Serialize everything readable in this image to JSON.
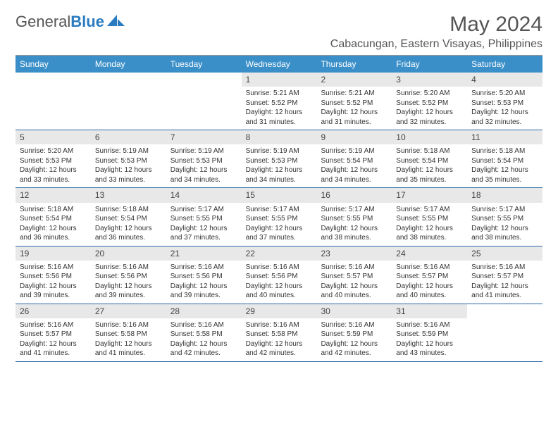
{
  "brand": {
    "part1": "General",
    "part2": "Blue"
  },
  "title": "May 2024",
  "location": "Cabacungan, Eastern Visayas, Philippines",
  "colors": {
    "header_bg": "#3b8fc9",
    "header_text": "#ffffff",
    "daynum_bg": "#e8e8e8",
    "border": "#2a6aa6",
    "text": "#333333",
    "title_text": "#555555"
  },
  "weekdays": [
    "Sunday",
    "Monday",
    "Tuesday",
    "Wednesday",
    "Thursday",
    "Friday",
    "Saturday"
  ],
  "weeks": [
    [
      {
        "n": "",
        "sunrise": "",
        "sunset": "",
        "dl": ""
      },
      {
        "n": "",
        "sunrise": "",
        "sunset": "",
        "dl": ""
      },
      {
        "n": "",
        "sunrise": "",
        "sunset": "",
        "dl": ""
      },
      {
        "n": "1",
        "sunrise": "Sunrise: 5:21 AM",
        "sunset": "Sunset: 5:52 PM",
        "dl": "Daylight: 12 hours and 31 minutes."
      },
      {
        "n": "2",
        "sunrise": "Sunrise: 5:21 AM",
        "sunset": "Sunset: 5:52 PM",
        "dl": "Daylight: 12 hours and 31 minutes."
      },
      {
        "n": "3",
        "sunrise": "Sunrise: 5:20 AM",
        "sunset": "Sunset: 5:52 PM",
        "dl": "Daylight: 12 hours and 32 minutes."
      },
      {
        "n": "4",
        "sunrise": "Sunrise: 5:20 AM",
        "sunset": "Sunset: 5:53 PM",
        "dl": "Daylight: 12 hours and 32 minutes."
      }
    ],
    [
      {
        "n": "5",
        "sunrise": "Sunrise: 5:20 AM",
        "sunset": "Sunset: 5:53 PM",
        "dl": "Daylight: 12 hours and 33 minutes."
      },
      {
        "n": "6",
        "sunrise": "Sunrise: 5:19 AM",
        "sunset": "Sunset: 5:53 PM",
        "dl": "Daylight: 12 hours and 33 minutes."
      },
      {
        "n": "7",
        "sunrise": "Sunrise: 5:19 AM",
        "sunset": "Sunset: 5:53 PM",
        "dl": "Daylight: 12 hours and 34 minutes."
      },
      {
        "n": "8",
        "sunrise": "Sunrise: 5:19 AM",
        "sunset": "Sunset: 5:53 PM",
        "dl": "Daylight: 12 hours and 34 minutes."
      },
      {
        "n": "9",
        "sunrise": "Sunrise: 5:19 AM",
        "sunset": "Sunset: 5:54 PM",
        "dl": "Daylight: 12 hours and 34 minutes."
      },
      {
        "n": "10",
        "sunrise": "Sunrise: 5:18 AM",
        "sunset": "Sunset: 5:54 PM",
        "dl": "Daylight: 12 hours and 35 minutes."
      },
      {
        "n": "11",
        "sunrise": "Sunrise: 5:18 AM",
        "sunset": "Sunset: 5:54 PM",
        "dl": "Daylight: 12 hours and 35 minutes."
      }
    ],
    [
      {
        "n": "12",
        "sunrise": "Sunrise: 5:18 AM",
        "sunset": "Sunset: 5:54 PM",
        "dl": "Daylight: 12 hours and 36 minutes."
      },
      {
        "n": "13",
        "sunrise": "Sunrise: 5:18 AM",
        "sunset": "Sunset: 5:54 PM",
        "dl": "Daylight: 12 hours and 36 minutes."
      },
      {
        "n": "14",
        "sunrise": "Sunrise: 5:17 AM",
        "sunset": "Sunset: 5:55 PM",
        "dl": "Daylight: 12 hours and 37 minutes."
      },
      {
        "n": "15",
        "sunrise": "Sunrise: 5:17 AM",
        "sunset": "Sunset: 5:55 PM",
        "dl": "Daylight: 12 hours and 37 minutes."
      },
      {
        "n": "16",
        "sunrise": "Sunrise: 5:17 AM",
        "sunset": "Sunset: 5:55 PM",
        "dl": "Daylight: 12 hours and 38 minutes."
      },
      {
        "n": "17",
        "sunrise": "Sunrise: 5:17 AM",
        "sunset": "Sunset: 5:55 PM",
        "dl": "Daylight: 12 hours and 38 minutes."
      },
      {
        "n": "18",
        "sunrise": "Sunrise: 5:17 AM",
        "sunset": "Sunset: 5:55 PM",
        "dl": "Daylight: 12 hours and 38 minutes."
      }
    ],
    [
      {
        "n": "19",
        "sunrise": "Sunrise: 5:16 AM",
        "sunset": "Sunset: 5:56 PM",
        "dl": "Daylight: 12 hours and 39 minutes."
      },
      {
        "n": "20",
        "sunrise": "Sunrise: 5:16 AM",
        "sunset": "Sunset: 5:56 PM",
        "dl": "Daylight: 12 hours and 39 minutes."
      },
      {
        "n": "21",
        "sunrise": "Sunrise: 5:16 AM",
        "sunset": "Sunset: 5:56 PM",
        "dl": "Daylight: 12 hours and 39 minutes."
      },
      {
        "n": "22",
        "sunrise": "Sunrise: 5:16 AM",
        "sunset": "Sunset: 5:56 PM",
        "dl": "Daylight: 12 hours and 40 minutes."
      },
      {
        "n": "23",
        "sunrise": "Sunrise: 5:16 AM",
        "sunset": "Sunset: 5:57 PM",
        "dl": "Daylight: 12 hours and 40 minutes."
      },
      {
        "n": "24",
        "sunrise": "Sunrise: 5:16 AM",
        "sunset": "Sunset: 5:57 PM",
        "dl": "Daylight: 12 hours and 40 minutes."
      },
      {
        "n": "25",
        "sunrise": "Sunrise: 5:16 AM",
        "sunset": "Sunset: 5:57 PM",
        "dl": "Daylight: 12 hours and 41 minutes."
      }
    ],
    [
      {
        "n": "26",
        "sunrise": "Sunrise: 5:16 AM",
        "sunset": "Sunset: 5:57 PM",
        "dl": "Daylight: 12 hours and 41 minutes."
      },
      {
        "n": "27",
        "sunrise": "Sunrise: 5:16 AM",
        "sunset": "Sunset: 5:58 PM",
        "dl": "Daylight: 12 hours and 41 minutes."
      },
      {
        "n": "28",
        "sunrise": "Sunrise: 5:16 AM",
        "sunset": "Sunset: 5:58 PM",
        "dl": "Daylight: 12 hours and 42 minutes."
      },
      {
        "n": "29",
        "sunrise": "Sunrise: 5:16 AM",
        "sunset": "Sunset: 5:58 PM",
        "dl": "Daylight: 12 hours and 42 minutes."
      },
      {
        "n": "30",
        "sunrise": "Sunrise: 5:16 AM",
        "sunset": "Sunset: 5:59 PM",
        "dl": "Daylight: 12 hours and 42 minutes."
      },
      {
        "n": "31",
        "sunrise": "Sunrise: 5:16 AM",
        "sunset": "Sunset: 5:59 PM",
        "dl": "Daylight: 12 hours and 43 minutes."
      },
      {
        "n": "",
        "sunrise": "",
        "sunset": "",
        "dl": ""
      }
    ]
  ]
}
